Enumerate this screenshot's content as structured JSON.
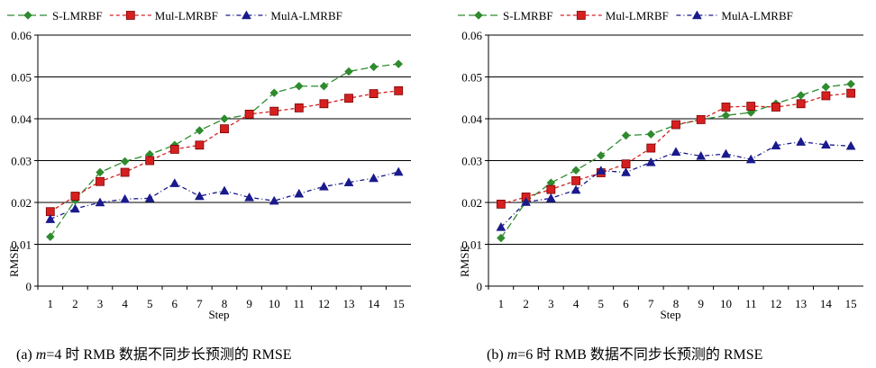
{
  "chart_data": [
    {
      "type": "line",
      "caption": {
        "prefix": "(a) ",
        "var": "m",
        "rest": "=4 时 RMB 数据不同步长预测的 RMSE"
      },
      "xlabel": "Step",
      "ylabel": "RMSE",
      "x": [
        1,
        2,
        3,
        4,
        5,
        6,
        7,
        8,
        9,
        10,
        11,
        12,
        13,
        14,
        15
      ],
      "ylim": [
        0,
        0.06
      ],
      "yticks": [
        "0",
        "0.01",
        "0.02",
        "0.03",
        "0.04",
        "0.05",
        "0.06"
      ],
      "grid": true,
      "legend_position": "top",
      "series": [
        {
          "name": "S-LMRBF",
          "color": "#2e8b2e",
          "marker": "diamond",
          "dash": "8,4",
          "values": [
            0.0118,
            0.0205,
            0.0272,
            0.0298,
            0.0315,
            0.0337,
            0.0372,
            0.04,
            0.041,
            0.0462,
            0.0478,
            0.0478,
            0.0513,
            0.0524,
            0.0531
          ]
        },
        {
          "name": "Mul-LMRBF",
          "color": "#d62020",
          "marker": "square",
          "dash": "4,3",
          "values": [
            0.0178,
            0.0215,
            0.025,
            0.0272,
            0.03,
            0.0327,
            0.0337,
            0.0376,
            0.0411,
            0.0418,
            0.0426,
            0.0436,
            0.0449,
            0.046,
            0.0467
          ]
        },
        {
          "name": "MulA-LMRBF",
          "color": "#1a1a8c",
          "marker": "triangle",
          "dash": "5,3,1,3",
          "values": [
            0.016,
            0.0185,
            0.02,
            0.0208,
            0.021,
            0.0246,
            0.0215,
            0.0228,
            0.0212,
            0.0204,
            0.0221,
            0.0238,
            0.0248,
            0.0258,
            0.0273
          ]
        }
      ]
    },
    {
      "type": "line",
      "caption": {
        "prefix": "(b) ",
        "var": "m",
        "rest": "=6 时 RMB 数据不同步长预测的 RMSE"
      },
      "xlabel": "Step",
      "ylabel": "RMSE",
      "x": [
        1,
        2,
        3,
        4,
        5,
        6,
        7,
        8,
        9,
        10,
        11,
        12,
        13,
        14,
        15
      ],
      "ylim": [
        0,
        0.06
      ],
      "yticks": [
        "0",
        "0.01",
        "0.02",
        "0.03",
        "0.04",
        "0.05",
        "0.06"
      ],
      "grid": true,
      "legend_position": "top",
      "series": [
        {
          "name": "S-LMRBF",
          "color": "#2e8b2e",
          "marker": "diamond",
          "dash": "8,4",
          "values": [
            0.0115,
            0.0202,
            0.0247,
            0.0277,
            0.0312,
            0.036,
            0.0363,
            0.0385,
            0.0398,
            0.0408,
            0.0415,
            0.0436,
            0.0456,
            0.0476,
            0.0483
          ]
        },
        {
          "name": "Mul-LMRBF",
          "color": "#d62020",
          "marker": "square",
          "dash": "4,3",
          "values": [
            0.0196,
            0.0213,
            0.0231,
            0.0252,
            0.0271,
            0.0292,
            0.033,
            0.0386,
            0.0398,
            0.0428,
            0.043,
            0.0428,
            0.0436,
            0.0455,
            0.0461
          ]
        },
        {
          "name": "MulA-LMRBF",
          "color": "#1a1a8c",
          "marker": "triangle",
          "dash": "5,3,1,3",
          "values": [
            0.0141,
            0.0201,
            0.021,
            0.023,
            0.0276,
            0.0272,
            0.0296,
            0.0321,
            0.0311,
            0.0316,
            0.0303,
            0.0336,
            0.0345,
            0.0338,
            0.0335
          ]
        }
      ]
    }
  ]
}
